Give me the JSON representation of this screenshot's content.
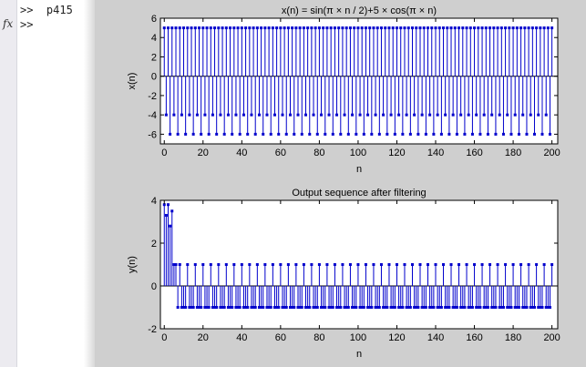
{
  "command_window": {
    "fx_label": "fx",
    "lines": [
      ">>  p415",
      ">>"
    ]
  },
  "chart_data": [
    {
      "type": "stem",
      "title": "x(n) = sin(π × n / 2)+5 × cos(π × n)",
      "xlabel": "n",
      "ylabel": "x(n)",
      "xlim": [
        -2,
        203
      ],
      "ylim": [
        -7,
        6
      ],
      "xticks": [
        0,
        20,
        40,
        60,
        80,
        100,
        120,
        140,
        160,
        180,
        200
      ],
      "yticks": [
        -6,
        -4,
        -2,
        0,
        2,
        4,
        6
      ],
      "n_range": [
        0,
        200
      ],
      "pattern": [
        5,
        -4,
        5,
        -6
      ],
      "description": "x(n) values repeat with period 4: n mod 4 = 0 → 5, 1 → -4, 2 → 5, 3 → -6",
      "color": "#0000cc"
    },
    {
      "type": "stem",
      "title": "Output sequence after filtering",
      "xlabel": "n",
      "ylabel": "y(n)",
      "xlim": [
        -2,
        203
      ],
      "ylim": [
        -2,
        4
      ],
      "xticks": [
        0,
        20,
        40,
        60,
        80,
        100,
        120,
        140,
        160,
        180,
        200
      ],
      "yticks": [
        -2,
        0,
        2,
        4
      ],
      "n_range": [
        0,
        200
      ],
      "initial_values": [
        3.8,
        3.3,
        3.8,
        2.8,
        3.5,
        1,
        1,
        -1
      ],
      "steady_pattern": [
        1,
        -1,
        -1,
        -1
      ],
      "description": "Transient for n=0..7, then y(n)=1 when n mod 4 = 0, else -1",
      "color": "#0000cc"
    }
  ]
}
